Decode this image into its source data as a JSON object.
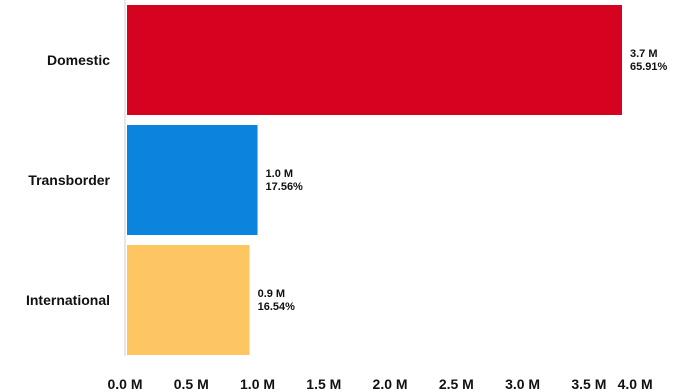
{
  "chart_data": {
    "type": "bar",
    "orientation": "horizontal",
    "title": "",
    "xlabel": "",
    "ylabel": "",
    "categories": [
      "Domestic",
      "Transborder",
      "International"
    ],
    "values": [
      3.75,
      1.0,
      0.94
    ],
    "value_labels": [
      "3.7 M",
      "1.0 M",
      "0.9 M"
    ],
    "percent_labels": [
      "65.91%",
      "17.56%",
      "16.54%"
    ],
    "colors": [
      "#d50320",
      "#0a84dd",
      "#fdc663"
    ],
    "xlim": [
      0,
      4
    ],
    "x_ticks": [
      0,
      0.5,
      1,
      1.5,
      2,
      2.5,
      3,
      3.5,
      4
    ],
    "x_tick_labels": [
      "0.0 M",
      "0.5 M",
      "1.0 M",
      "1.5 M",
      "2.0 M",
      "2.5 M",
      "3.0 M",
      "3.5 M",
      "4.0 M"
    ],
    "grid": false,
    "legend": "none"
  }
}
